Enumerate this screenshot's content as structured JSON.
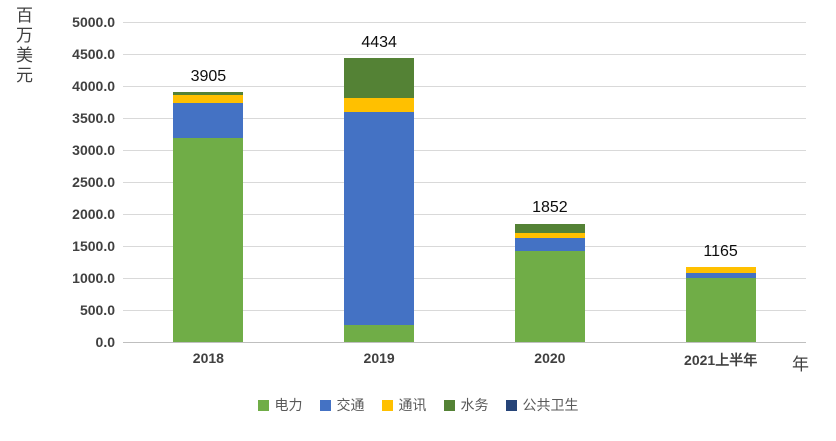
{
  "chart_data": {
    "type": "bar",
    "stacked": true,
    "title": "",
    "ylabel": "百万美元",
    "xlabel": "年",
    "categories": [
      "2018",
      "2019",
      "2020",
      "2021上半年"
    ],
    "series": [
      {
        "name": "电力",
        "color": "#70AD47",
        "values": [
          3192,
          270,
          1422,
          995
        ]
      },
      {
        "name": "交通",
        "color": "#4472C4",
        "values": [
          541,
          3320,
          198,
          78
        ]
      },
      {
        "name": "通讯",
        "color": "#FFC000",
        "values": [
          125,
          220,
          78,
          92
        ]
      },
      {
        "name": "水务",
        "color": "#548235",
        "values": [
          47,
          624,
          154,
          0
        ]
      },
      {
        "name": "公共卫生",
        "color": "#264478",
        "values": [
          0,
          0,
          0,
          0
        ]
      }
    ],
    "totals": [
      "3905",
      "4434",
      "1852",
      "1165"
    ],
    "ylim": [
      0,
      5000
    ],
    "ytick_step": 500,
    "y_ticks": [
      "5000.0",
      "4500.0",
      "4000.0",
      "3500.0",
      "3000.0",
      "2500.0",
      "2000.0",
      "1500.0",
      "1000.0",
      "500.0",
      "0.0"
    ],
    "grid": true,
    "legend_position": "bottom"
  },
  "colors": {
    "background": "#FFFFFF",
    "gridline": "#D9D9D9",
    "axis_line": "#BFBFBF",
    "axis_text": "#404040",
    "legend_text": "#595959",
    "value_label": "#0D0D0D"
  }
}
